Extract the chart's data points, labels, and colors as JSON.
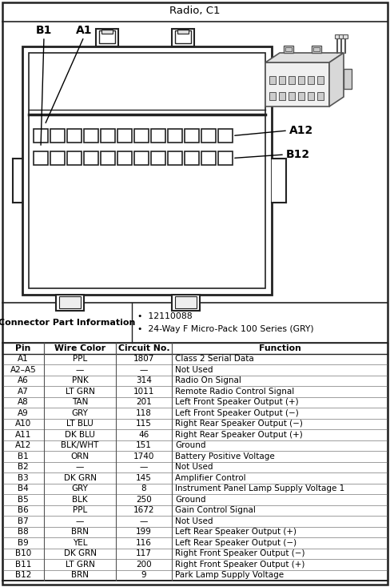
{
  "title": "Radio, C1",
  "connector_info_label": "Connector Part Information",
  "connector_info_bullets": [
    "12110088",
    "24-Way F Micro-Pack 100 Series (GRY)"
  ],
  "table_headers": [
    "Pin",
    "Wire Color",
    "Circuit No.",
    "Function"
  ],
  "table_rows": [
    [
      "A1",
      "PPL",
      "1807",
      "Class 2 Serial Data"
    ],
    [
      "A2–A5",
      "—",
      "—",
      "Not Used"
    ],
    [
      "A6",
      "PNK",
      "314",
      "Radio On Signal"
    ],
    [
      "A7",
      "LT GRN",
      "1011",
      "Remote Radio Control Signal"
    ],
    [
      "A8",
      "TAN",
      "201",
      "Left Front Speaker Output (+)"
    ],
    [
      "A9",
      "GRY",
      "118",
      "Left Front Speaker Output (−)"
    ],
    [
      "A10",
      "LT BLU",
      "115",
      "Right Rear Speaker Output (−)"
    ],
    [
      "A11",
      "DK BLU",
      "46",
      "Right Rear Speaker Output (+)"
    ],
    [
      "A12",
      "BLK/WHT",
      "151",
      "Ground"
    ],
    [
      "B1",
      "ORN",
      "1740",
      "Battery Positive Voltage"
    ],
    [
      "B2",
      "—",
      "—",
      "Not Used"
    ],
    [
      "B3",
      "DK GRN",
      "145",
      "Amplifier Control"
    ],
    [
      "B4",
      "GRY",
      "8",
      "Instrument Panel Lamp Supply Voltage 1"
    ],
    [
      "B5",
      "BLK",
      "250",
      "Ground"
    ],
    [
      "B6",
      "PPL",
      "1672",
      "Gain Control Signal"
    ],
    [
      "B7",
      "—",
      "—",
      "Not Used"
    ],
    [
      "B8",
      "BRN",
      "199",
      "Left Rear Speaker Output (+)"
    ],
    [
      "B9",
      "YEL",
      "116",
      "Left Rear Speaker Output (−)"
    ],
    [
      "B10",
      "DK GRN",
      "117",
      "Right Front Speaker Output (−)"
    ],
    [
      "B11",
      "LT GRN",
      "200",
      "Right Front Speaker Output (+)"
    ],
    [
      "B12",
      "BRN",
      "9",
      "Park Lamp Supply Voltage"
    ]
  ]
}
